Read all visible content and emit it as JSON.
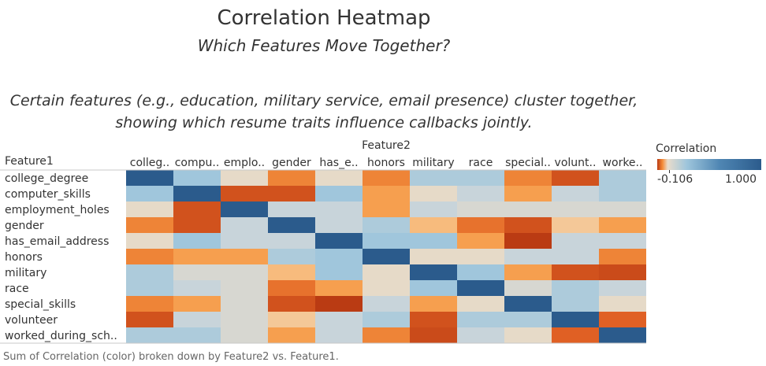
{
  "title": "Correlation Heatmap",
  "subtitle": "Which Features Move Together?",
  "annotation_line1": "Certain features (e.g., education, military service, email presence) cluster together,",
  "annotation_line2": "showing which resume traits influence callbacks jointly.",
  "footer": "Sum of Correlation (color) broken down by Feature2 vs. Feature1.",
  "legend": {
    "title": "Correlation",
    "min_label": "-0.106",
    "max_label": "1.000"
  },
  "chart_data": {
    "type": "heatmap",
    "xlabel": "Feature2",
    "ylabel": "Feature1",
    "x_labels": [
      "colleg..",
      "compu..",
      "emplo..",
      "gender",
      "has_e..",
      "honors",
      "military",
      "race",
      "special..",
      "volunt..",
      "worke.."
    ],
    "y_labels": [
      "college_degree",
      "computer_skills",
      "employment_holes",
      "gender",
      "has_email_address",
      "honors",
      "military",
      "race",
      "special_skills",
      "volunteer",
      "worked_during_sch.."
    ],
    "color_range": [
      -0.106,
      1.0
    ],
    "values": [
      [
        1.0,
        0.1,
        0.0,
        -0.06,
        0.0,
        -0.06,
        0.08,
        0.08,
        -0.06,
        -0.09,
        0.08
      ],
      [
        0.1,
        1.0,
        -0.09,
        -0.09,
        0.1,
        -0.045,
        0.0,
        0.04,
        -0.045,
        0.04,
        0.08
      ],
      [
        0.0,
        -0.09,
        1.0,
        0.04,
        0.04,
        -0.045,
        0.04,
        0.02,
        0.02,
        0.02,
        0.02
      ],
      [
        -0.06,
        -0.09,
        0.04,
        1.0,
        0.04,
        0.08,
        -0.03,
        -0.07,
        -0.09,
        -0.02,
        -0.045
      ],
      [
        0.0,
        0.1,
        0.04,
        0.04,
        1.0,
        0.1,
        0.1,
        -0.045,
        -0.106,
        0.04,
        0.04
      ],
      [
        -0.06,
        -0.045,
        -0.045,
        0.08,
        0.1,
        1.0,
        0.0,
        0.0,
        0.04,
        0.04,
        -0.06
      ],
      [
        0.08,
        0.02,
        0.02,
        -0.03,
        0.1,
        0.0,
        1.0,
        0.1,
        -0.045,
        -0.09,
        -0.095
      ],
      [
        0.08,
        0.04,
        0.02,
        -0.07,
        -0.045,
        0.0,
        0.1,
        1.0,
        0.02,
        0.08,
        0.04
      ],
      [
        -0.06,
        -0.045,
        0.02,
        -0.09,
        -0.106,
        0.04,
        -0.045,
        0.0,
        1.0,
        0.08,
        0.0
      ],
      [
        -0.09,
        0.04,
        0.02,
        -0.02,
        0.04,
        0.08,
        -0.09,
        0.08,
        0.08,
        1.0,
        -0.08
      ],
      [
        0.08,
        0.08,
        0.02,
        -0.045,
        0.04,
        -0.06,
        -0.095,
        0.04,
        0.0,
        -0.08,
        1.0
      ]
    ]
  }
}
